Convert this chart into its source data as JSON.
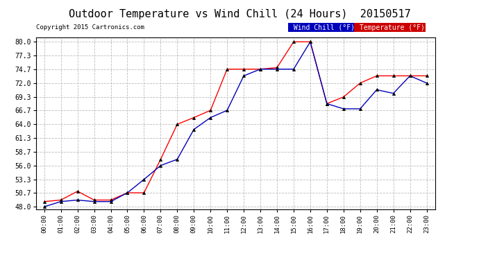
{
  "title": "Outdoor Temperature vs Wind Chill (24 Hours)  20150517",
  "copyright": "Copyright 2015 Cartronics.com",
  "x_labels": [
    "00:00",
    "01:00",
    "02:00",
    "03:00",
    "04:00",
    "05:00",
    "06:00",
    "07:00",
    "08:00",
    "09:00",
    "10:00",
    "11:00",
    "12:00",
    "13:00",
    "14:00",
    "15:00",
    "16:00",
    "17:00",
    "18:00",
    "19:00",
    "20:00",
    "21:00",
    "22:00",
    "23:00"
  ],
  "temperature": [
    49.0,
    49.3,
    51.0,
    49.3,
    49.3,
    50.7,
    50.7,
    57.2,
    64.0,
    65.3,
    66.7,
    74.7,
    74.7,
    74.7,
    75.0,
    80.0,
    80.0,
    68.0,
    69.3,
    72.0,
    73.4,
    73.4,
    73.4,
    73.4
  ],
  "wind_chill": [
    48.0,
    49.0,
    49.3,
    49.0,
    49.0,
    50.7,
    53.3,
    56.0,
    57.2,
    63.0,
    65.3,
    66.7,
    73.4,
    74.7,
    74.7,
    74.7,
    80.0,
    68.0,
    67.0,
    67.0,
    70.7,
    70.0,
    73.4,
    72.0
  ],
  "ylim": [
    48.0,
    80.0
  ],
  "yticks": [
    48.0,
    50.7,
    53.3,
    56.0,
    58.7,
    61.3,
    64.0,
    66.7,
    69.3,
    72.0,
    74.7,
    77.3,
    80.0
  ],
  "temp_color": "#ff0000",
  "wind_chill_color": "#0000bb",
  "background_color": "#ffffff",
  "grid_color": "#bbbbbb",
  "title_fontsize": 11,
  "legend_wind_chill_bg": "#0000bb",
  "legend_temp_bg": "#cc0000",
  "legend_text_color": "#ffffff"
}
